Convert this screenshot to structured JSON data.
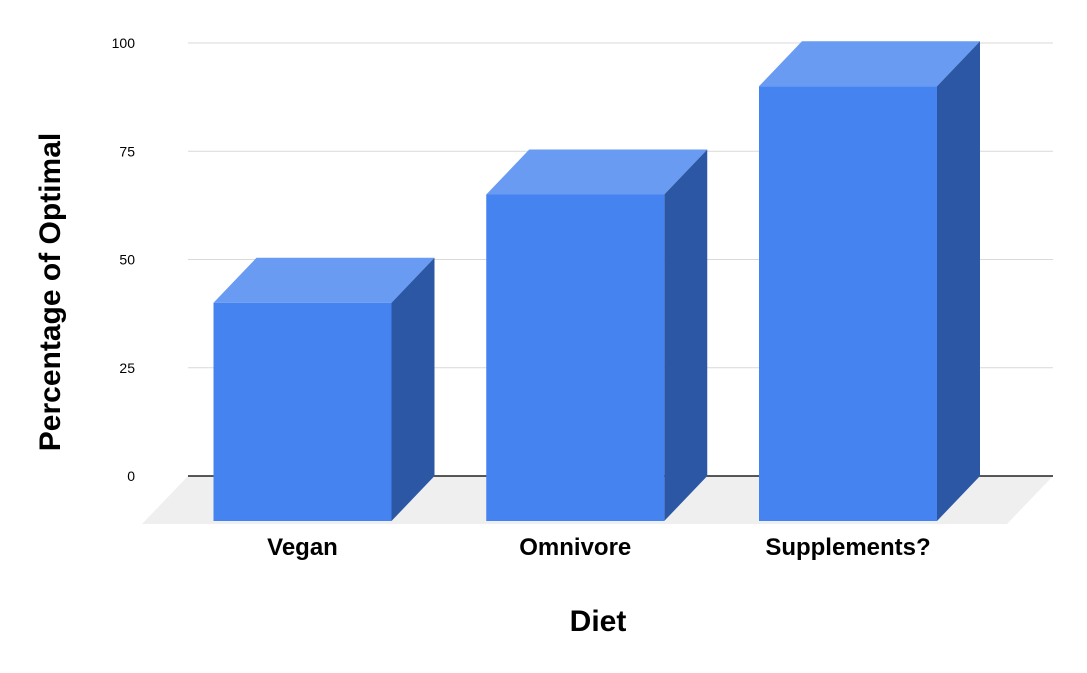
{
  "chart_data": {
    "type": "bar",
    "subtype": "3d-column",
    "title": "",
    "xlabel": "Diet",
    "ylabel": "Percentage of Optimal",
    "categories": [
      "Vegan",
      "Omnivore",
      "Supplements?"
    ],
    "values": [
      40,
      65,
      90
    ],
    "series": [
      {
        "name": "Percentage of Optimal",
        "values": [
          40,
          65,
          90
        ]
      }
    ],
    "ylim": [
      0,
      100
    ],
    "yticks": [
      0,
      25,
      50,
      75,
      100
    ],
    "grid": true,
    "legend": "none",
    "colors": {
      "bar_front": "#4583f1",
      "bar_top": "#699bf2",
      "bar_side": "#2c57a5",
      "floor": "#efefef",
      "gridline": "#d9d9d9",
      "axis_line": "#212121",
      "text": "#000000",
      "background": "#ffffff"
    }
  }
}
